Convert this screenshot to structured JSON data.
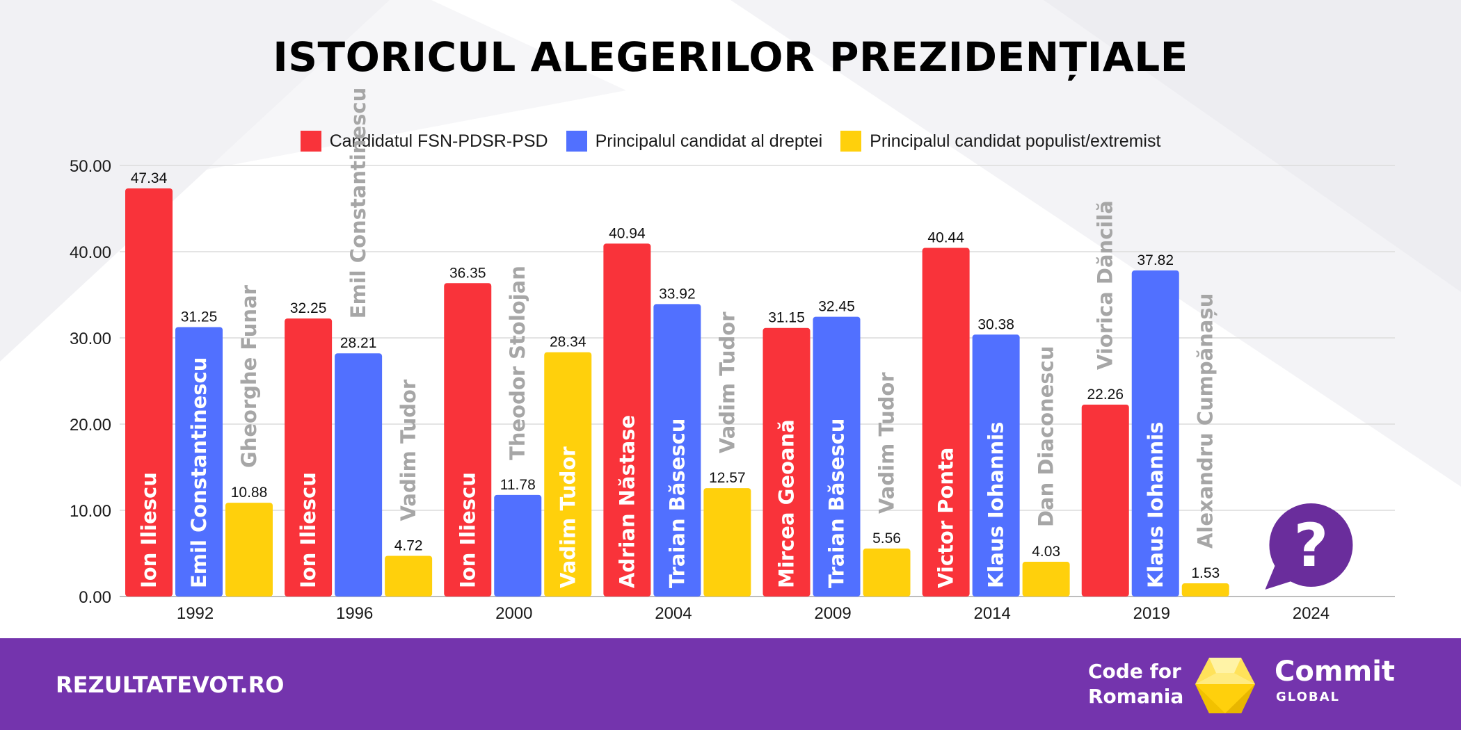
{
  "title": "ISTORICUL ALEGERILOR PREZIDENȚIALE",
  "footer": {
    "url": "REZULTATEVOT.RO",
    "code_for_line1": "Code for",
    "code_for_line2": "Romania",
    "commit": "Commit",
    "global": "GLOBAL"
  },
  "colors": {
    "red": "#f9333a",
    "blue": "#5170ff",
    "yellow": "#ffd00c",
    "gray_label": "#a6a6a6",
    "purple": "#7434ad",
    "question_purple": "#6a2d9c"
  },
  "legend": [
    {
      "label": "Candidatul FSN-PDSR-PSD",
      "color": "#f9333a"
    },
    {
      "label": "Principalul candidat al dreptei",
      "color": "#5170ff"
    },
    {
      "label": "Principalul candidat populist/extremist",
      "color": "#ffd00c"
    }
  ],
  "question_icon": "question-mark-speech-bubble-icon",
  "chart_data": {
    "type": "bar",
    "ylim": [
      0,
      50
    ],
    "yticks": [
      "0.00",
      "10.00",
      "20.00",
      "30.00",
      "40.00",
      "50.00"
    ],
    "grid": true,
    "legend_position": "top",
    "categories": [
      "1992",
      "1996",
      "2000",
      "2004",
      "2009",
      "2014",
      "2019",
      "2024"
    ],
    "series": [
      {
        "name": "Candidatul FSN-PDSR-PSD",
        "color": "#f9333a",
        "values": [
          47.34,
          32.25,
          36.35,
          40.94,
          31.15,
          40.44,
          22.26,
          null
        ],
        "candidates": [
          "Ion Iliescu",
          "Ion Iliescu",
          "Ion Iliescu",
          "Adrian Năstase",
          "Mircea Geoană",
          "Victor Ponta",
          "Viorica Dăncilă",
          ""
        ]
      },
      {
        "name": "Principalul candidat al dreptei",
        "color": "#5170ff",
        "values": [
          31.25,
          28.21,
          11.78,
          33.92,
          32.45,
          30.38,
          37.82,
          null
        ],
        "candidates": [
          "Emil Constantinescu",
          "Emil Constantinescu",
          "Theodor Stolojan",
          "Traian Băsescu",
          "Traian Băsescu",
          "Klaus Iohannis",
          "Klaus Iohannis",
          ""
        ]
      },
      {
        "name": "Principalul candidat populist/extremist",
        "color": "#ffd00c",
        "values": [
          10.88,
          4.72,
          28.34,
          12.57,
          5.56,
          4.03,
          1.53,
          null
        ],
        "candidates": [
          "Gheorghe Funar",
          "Vadim Tudor",
          "Vadim Tudor",
          "Vadim Tudor",
          "Vadim Tudor",
          "Dan Diaconescu",
          "Alexandru Cumpănașu",
          ""
        ]
      }
    ]
  }
}
